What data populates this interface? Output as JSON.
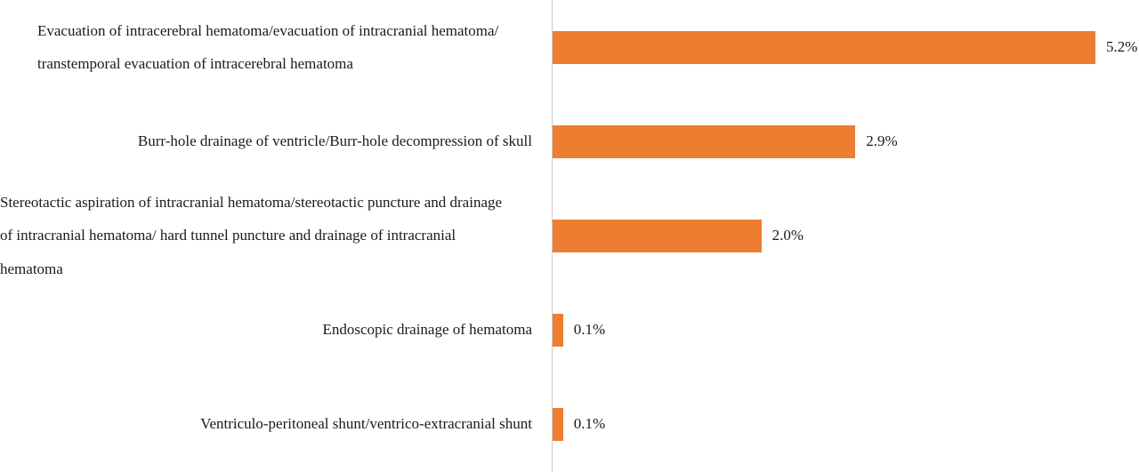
{
  "chart_data": {
    "type": "bar",
    "orientation": "horizontal",
    "categories": [
      "Evacuation of intracerebral hematoma/evacuation of intracranial hematoma/\ntranstemporal evacuation of intracerebral hematoma",
      "Burr-hole drainage of ventricle/Burr-hole decompression of skull",
      "Stereotactic aspiration of intracranial hematoma/stereotactic puncture and drainage\nof intracranial hematoma/ hard tunnel puncture and drainage of intracranial\nhematoma",
      "Endoscopic drainage of hematoma",
      "Ventriculo-peritoneal shunt/ventrico-extracranial shunt"
    ],
    "values": [
      5.2,
      2.9,
      2.0,
      0.1,
      0.1
    ],
    "value_labels": [
      "5.2%",
      "2.9%",
      "2.0%",
      "0.1%",
      "0.1%"
    ],
    "unit": "%",
    "xlim": [
      0,
      5.2
    ],
    "grid": false,
    "legend": "none",
    "bar_color": "#ED7D31",
    "axis_line_color": "#C9C9C9"
  }
}
